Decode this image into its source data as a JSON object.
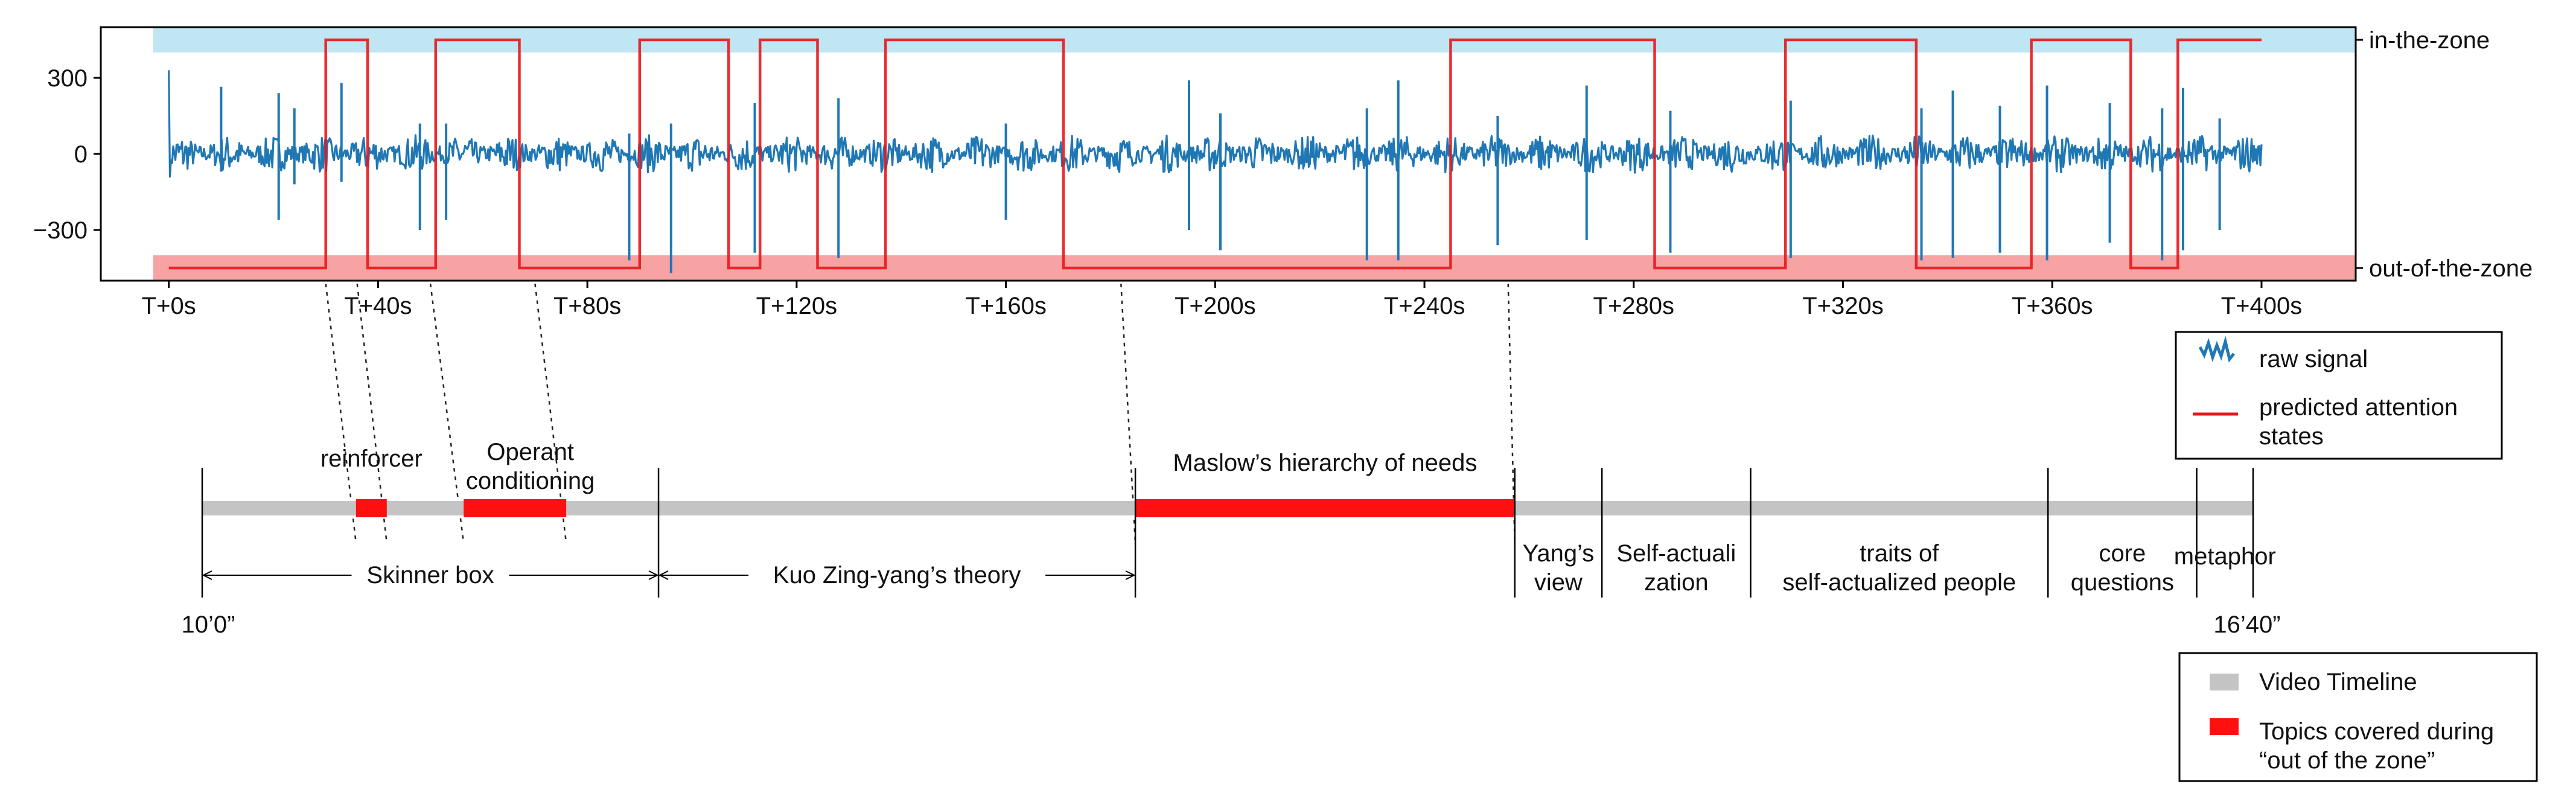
{
  "chart_data": [
    {
      "type": "line",
      "series": [
        {
          "name": "raw signal",
          "color": "#1f77b4"
        },
        {
          "name": "predicted attention states",
          "color": "#e8161b",
          "x": [
            0,
            30,
            30,
            38,
            38,
            51,
            51,
            67,
            67,
            90,
            90,
            107,
            107,
            113,
            113,
            124,
            124,
            137,
            137,
            171,
            171,
            245,
            245,
            284,
            284,
            309,
            309,
            334,
            334,
            356,
            356,
            375,
            375,
            384,
            384,
            400
          ],
          "y": [
            -450,
            -450,
            450,
            450,
            -450,
            -450,
            450,
            450,
            -450,
            -450,
            450,
            450,
            -450,
            -450,
            450,
            450,
            -450,
            -450,
            450,
            450,
            -450,
            -450,
            450,
            450,
            -450,
            -450,
            450,
            450,
            -450,
            -450,
            450,
            450,
            -450,
            -450,
            450,
            450
          ]
        }
      ],
      "signal_spikes": [
        {
          "x": 10,
          "top": 265,
          "bottom": -70
        },
        {
          "x": 21,
          "top": 240,
          "bottom": -260
        },
        {
          "x": 24,
          "top": 180,
          "bottom": -120
        },
        {
          "x": 33,
          "top": 280,
          "bottom": -110
        },
        {
          "x": 48,
          "top": 120,
          "bottom": -300
        },
        {
          "x": 53,
          "top": 120,
          "bottom": -260
        },
        {
          "x": 88,
          "top": 80,
          "bottom": -420
        },
        {
          "x": 96,
          "top": 120,
          "bottom": -470
        },
        {
          "x": 112,
          "top": 200,
          "bottom": -390
        },
        {
          "x": 128,
          "top": 220,
          "bottom": -410
        },
        {
          "x": 160,
          "top": 120,
          "bottom": -260
        },
        {
          "x": 195,
          "top": 290,
          "bottom": -300
        },
        {
          "x": 201,
          "top": 160,
          "bottom": -380
        },
        {
          "x": 229,
          "top": 180,
          "bottom": -420
        },
        {
          "x": 235,
          "top": 290,
          "bottom": -420
        },
        {
          "x": 254,
          "top": 150,
          "bottom": -360
        },
        {
          "x": 271,
          "top": 270,
          "bottom": -340
        },
        {
          "x": 287,
          "top": 170,
          "bottom": -390
        },
        {
          "x": 310,
          "top": 210,
          "bottom": -410
        },
        {
          "x": 335,
          "top": 180,
          "bottom": -420
        },
        {
          "x": 341,
          "top": 250,
          "bottom": -410
        },
        {
          "x": 350,
          "top": 190,
          "bottom": -390
        },
        {
          "x": 359,
          "top": 270,
          "bottom": -420
        },
        {
          "x": 371,
          "top": 200,
          "bottom": -350
        },
        {
          "x": 381,
          "top": 180,
          "bottom": -420
        },
        {
          "x": 385,
          "top": 260,
          "bottom": -380
        },
        {
          "x": 392,
          "top": 140,
          "bottom": -300
        }
      ],
      "bands": [
        {
          "label": "in-the-zone",
          "from": 400,
          "to": 500,
          "color": "#bfe6f2"
        },
        {
          "label": "out-of-the-zone",
          "from": -500,
          "to": -400,
          "color": "#f8a3a3"
        }
      ],
      "xlim": [
        -13,
        418
      ],
      "ylim": [
        -500,
        500
      ],
      "yticks": [
        300,
        0,
        -300
      ],
      "ytick_labels": [
        "300",
        "0",
        "−300"
      ],
      "xticks": [
        0,
        40,
        80,
        120,
        160,
        200,
        240,
        280,
        320,
        360,
        400
      ],
      "xtick_labels": [
        "T+0s",
        "T+40s",
        "T+80s",
        "T+120s",
        "T+160s",
        "T+200s",
        "T+240s",
        "T+280s",
        "T+320s",
        "T+360s",
        "T+400s"
      ],
      "right_labels": [
        "in-the-zone",
        "out-of-the-zone"
      ],
      "legend": {
        "placement": "below-right",
        "entries": [
          "raw signal",
          "predicted attention states"
        ]
      }
    },
    {
      "type": "bar",
      "timeline": {
        "start_label": "10’0”",
        "end_label": "16’40”",
        "from": 0,
        "to": 400
      },
      "highlighted_segments": [
        {
          "label": "reinforcer",
          "from": 30,
          "to": 36
        },
        {
          "label": "Operant conditioning",
          "label_lines": [
            "Operant",
            "conditioning"
          ],
          "from": 51,
          "to": 71
        },
        {
          "label": "Maslow’s hierarchy of needs",
          "from": 182,
          "to": 256
        }
      ],
      "dividers": [
        89,
        182,
        256,
        273,
        302,
        360,
        389,
        400
      ],
      "arrow_spans": [
        {
          "label": "Skinner box",
          "from": 0,
          "to": 89
        },
        {
          "label": "Kuo Zing-yang’s theory",
          "from": 89,
          "to": 182
        }
      ],
      "topic_labels": [
        {
          "lines": [
            "Yang’s",
            "view"
          ],
          "from": 256,
          "to": 273
        },
        {
          "lines": [
            "Self-actuali",
            "zation"
          ],
          "from": 273,
          "to": 302
        },
        {
          "lines": [
            "traits of",
            "self-actualized people"
          ],
          "from": 302,
          "to": 360
        },
        {
          "lines": [
            "core",
            "questions"
          ],
          "from": 360,
          "to": 389
        },
        {
          "lines": [
            "metaphor"
          ],
          "from": 389,
          "to": 400
        }
      ],
      "connectors": [
        {
          "top_x": 30,
          "bottom_x": 30
        },
        {
          "top_x": 36,
          "bottom_x": 36
        },
        {
          "top_x": 50,
          "bottom_x": 51
        },
        {
          "top_x": 70,
          "bottom_x": 71
        },
        {
          "top_x": 182,
          "bottom_x": 182
        },
        {
          "top_x": 256,
          "bottom_x": 256
        }
      ],
      "legend": {
        "placement": "bottom-right",
        "entries": [
          {
            "label": "Video Timeline",
            "color": "#c4c4c4"
          },
          {
            "label": "Topics covered during “out of the zone”",
            "lines": [
              "Topics covered during",
              "“out of the zone”"
            ],
            "color": "#ff1010"
          }
        ]
      }
    }
  ]
}
